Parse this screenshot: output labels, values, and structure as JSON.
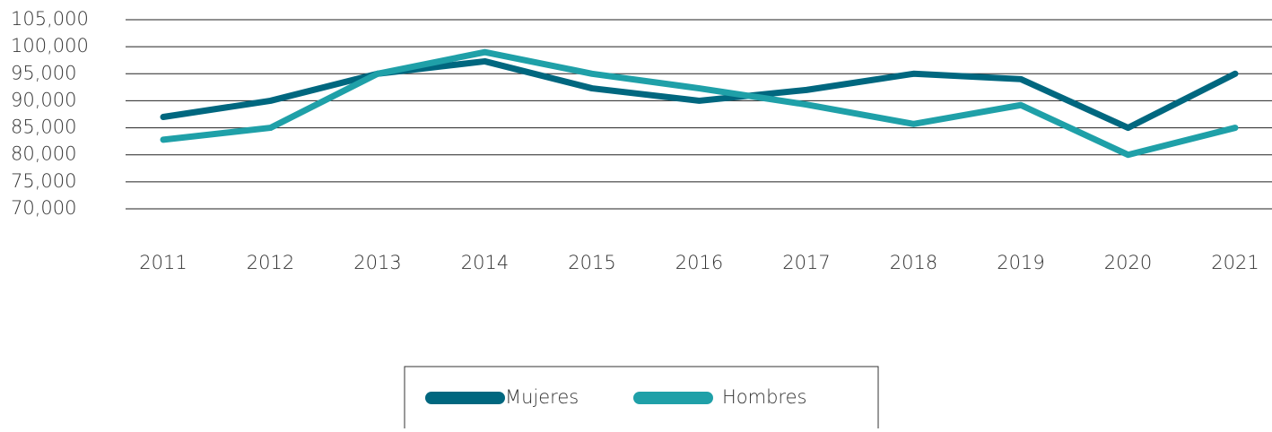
{
  "chart_data": {
    "type": "line",
    "categories": [
      "2011",
      "2012",
      "2013",
      "2014",
      "2015",
      "2016",
      "2017",
      "2018",
      "2019",
      "2020",
      "2021"
    ],
    "series": [
      {
        "name": "Mujeres",
        "color": "#00677f",
        "values": [
          87000,
          90000,
          95000,
          97300,
          92300,
          90000,
          92000,
          95000,
          94000,
          85000,
          95000
        ]
      },
      {
        "name": "Hombres",
        "color": "#1fa0a8",
        "values": [
          82800,
          85000,
          95000,
          99000,
          95000,
          92300,
          89300,
          85700,
          89200,
          80000,
          85000
        ]
      }
    ],
    "ylim": [
      70000,
      105000
    ],
    "yticks": [
      {
        "value": 70000,
        "label": "70,000"
      },
      {
        "value": 75000,
        "label": "75,000"
      },
      {
        "value": 80000,
        "label": "80,000"
      },
      {
        "value": 85000,
        "label": "85,000"
      },
      {
        "value": 90000,
        "label": "90,000"
      },
      {
        "value": 95000,
        "label": "95,000"
      },
      {
        "value": 100000,
        "label": "100,000"
      },
      {
        "value": 105000,
        "label": "105,000"
      }
    ],
    "grid": true
  }
}
